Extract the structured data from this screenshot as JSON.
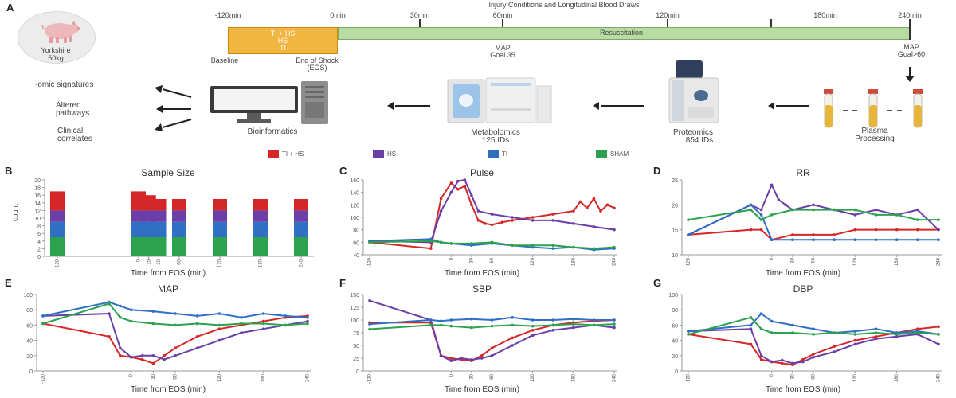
{
  "panelA": {
    "letter": "A",
    "title": "Injury Conditions and Longitudinal Blood Draws",
    "animal": {
      "name": "Yorkshire",
      "weight": "50kg"
    },
    "times": [
      "-120min",
      "0min",
      "30min",
      "60min",
      "120min",
      "180min",
      "240min"
    ],
    "shock_lines": [
      "TI + HS",
      "HS",
      "TI"
    ],
    "resuscitation": "Resuscitation",
    "baseline": "Baseline",
    "eos": [
      "End of Shock",
      "(EOS)"
    ],
    "map_goal_35": [
      "MAP",
      "Goal 35"
    ],
    "map_goal_60": [
      "MAP",
      "Goal>60"
    ],
    "outputs": [
      "-omic signatures",
      "Altered pathways",
      "Clinical correlates"
    ],
    "steps": {
      "bioinformatics": [
        "Bioinformatics"
      ],
      "metabolomics": [
        "Metabolomics",
        "125 IDs"
      ],
      "proteomics": [
        "Proteomics",
        "854 IDs"
      ],
      "plasma": [
        "Plasma",
        "Processing"
      ]
    }
  },
  "legend": [
    {
      "label": "TI + HS",
      "color": "#d62728"
    },
    {
      "label": "HS",
      "color": "#6a3fa8"
    },
    {
      "label": "TI",
      "color": "#2f6fc4"
    },
    {
      "label": "SHAM",
      "color": "#2ca24f"
    }
  ],
  "x_tick_labels": [
    "-120",
    "0",
    "30",
    "60",
    "120",
    "180",
    "240"
  ],
  "chart_data": [
    {
      "id": "B",
      "type": "bar",
      "title": "Sample Size",
      "xlabel": "Time from EOS (min)",
      "ylabel": "count",
      "ylim": [
        0,
        20
      ],
      "yticks": [
        0,
        2,
        4,
        6,
        8,
        10,
        12,
        14,
        16,
        18,
        20
      ],
      "categories": [
        "-120",
        "0",
        "15",
        "30",
        "60",
        "120",
        "180",
        "240"
      ],
      "x": [
        -120,
        0,
        15,
        30,
        60,
        120,
        180,
        240
      ],
      "series": [
        {
          "name": "SHAM",
          "values": [
            5,
            5,
            5,
            5,
            5,
            5,
            5,
            5
          ]
        },
        {
          "name": "TI",
          "values": [
            4,
            4,
            4,
            4,
            4,
            4,
            4,
            4
          ]
        },
        {
          "name": "HS",
          "values": [
            3,
            3,
            3,
            3,
            3,
            3,
            3,
            3
          ]
        },
        {
          "name": "TI + HS",
          "values": [
            5,
            5,
            4,
            3,
            3,
            3,
            3,
            3
          ]
        }
      ]
    },
    {
      "id": "C",
      "type": "line",
      "title": "Pulse",
      "xlabel": "Time from EOS (min)",
      "xlim": [
        -120,
        240
      ],
      "ylim": [
        40,
        160
      ],
      "yticks": [
        40,
        60,
        80,
        100,
        120,
        140,
        160
      ],
      "series": [
        {
          "name": "TI + HS",
          "x": [
            -120,
            -30,
            -15,
            0,
            10,
            20,
            30,
            40,
            50,
            60,
            75,
            90,
            120,
            150,
            180,
            190,
            200,
            210,
            220,
            230,
            240
          ],
          "y": [
            60,
            50,
            130,
            155,
            145,
            150,
            120,
            95,
            90,
            88,
            92,
            95,
            100,
            105,
            110,
            125,
            115,
            130,
            110,
            120,
            115
          ]
        },
        {
          "name": "HS",
          "x": [
            -120,
            -30,
            -15,
            0,
            10,
            20,
            30,
            40,
            60,
            90,
            120,
            150,
            180,
            210,
            240
          ],
          "y": [
            62,
            60,
            110,
            140,
            158,
            160,
            135,
            110,
            105,
            100,
            95,
            95,
            90,
            85,
            80
          ]
        },
        {
          "name": "TI",
          "x": [
            -120,
            -30,
            -15,
            0,
            30,
            60,
            90,
            120,
            150,
            180,
            210,
            240
          ],
          "y": [
            62,
            65,
            60,
            58,
            55,
            58,
            55,
            52,
            50,
            52,
            48,
            50
          ]
        },
        {
          "name": "SHAM",
          "x": [
            -120,
            -30,
            -15,
            0,
            30,
            60,
            90,
            120,
            150,
            180,
            210,
            240
          ],
          "y": [
            60,
            62,
            60,
            58,
            58,
            60,
            55,
            55,
            55,
            52,
            50,
            52
          ]
        }
      ]
    },
    {
      "id": "D",
      "type": "line",
      "title": "RR",
      "xlabel": "Time from EOS (min)",
      "xlim": [
        -120,
        240
      ],
      "ylim": [
        10,
        25
      ],
      "yticks": [
        10,
        15,
        20,
        25
      ],
      "series": [
        {
          "name": "TI + HS",
          "x": [
            -120,
            -30,
            -15,
            0,
            30,
            60,
            90,
            120,
            150,
            180,
            210,
            240
          ],
          "y": [
            14,
            15,
            15,
            13,
            14,
            14,
            14,
            15,
            15,
            15,
            15,
            15
          ]
        },
        {
          "name": "HS",
          "x": [
            -120,
            -30,
            -15,
            0,
            10,
            20,
            30,
            60,
            90,
            120,
            150,
            180,
            210,
            240
          ],
          "y": [
            14,
            20,
            19,
            24,
            21,
            20,
            19,
            20,
            19,
            18,
            19,
            18,
            19,
            15
          ]
        },
        {
          "name": "TI",
          "x": [
            -120,
            -30,
            -15,
            0,
            30,
            60,
            90,
            120,
            150,
            180,
            210,
            240
          ],
          "y": [
            14,
            20,
            18,
            13,
            13,
            13,
            13,
            13,
            13,
            13,
            13,
            13
          ]
        },
        {
          "name": "SHAM",
          "x": [
            -120,
            -30,
            -15,
            0,
            30,
            60,
            90,
            120,
            150,
            180,
            210,
            240
          ],
          "y": [
            17,
            19,
            17,
            18,
            19,
            19,
            19,
            19,
            18,
            18,
            17,
            17
          ]
        }
      ]
    },
    {
      "id": "E",
      "type": "line",
      "title": "MAP",
      "xlabel": "Time from EOS (min)",
      "xlim": [
        -120,
        240
      ],
      "ylim": [
        0,
        100
      ],
      "yticks": [
        0,
        20,
        40,
        60,
        80,
        100
      ],
      "series": [
        {
          "name": "TI + HS",
          "x": [
            -120,
            -30,
            -15,
            0,
            15,
            30,
            45,
            60,
            90,
            120,
            150,
            180,
            210,
            240
          ],
          "y": [
            62,
            45,
            20,
            18,
            15,
            10,
            20,
            30,
            45,
            55,
            60,
            65,
            70,
            72
          ]
        },
        {
          "name": "HS",
          "x": [
            -120,
            -30,
            -15,
            0,
            15,
            30,
            45,
            60,
            90,
            120,
            150,
            180,
            210,
            240
          ],
          "y": [
            72,
            75,
            30,
            18,
            20,
            20,
            15,
            20,
            30,
            40,
            50,
            55,
            60,
            65
          ]
        },
        {
          "name": "TI",
          "x": [
            -120,
            -30,
            -15,
            0,
            30,
            60,
            90,
            120,
            150,
            180,
            210,
            240
          ],
          "y": [
            72,
            90,
            85,
            80,
            78,
            75,
            72,
            75,
            70,
            75,
            72,
            70
          ]
        },
        {
          "name": "SHAM",
          "x": [
            -120,
            -30,
            -15,
            0,
            30,
            60,
            90,
            120,
            150,
            180,
            210,
            240
          ],
          "y": [
            62,
            88,
            70,
            65,
            62,
            60,
            62,
            60,
            62,
            62,
            60,
            62
          ]
        }
      ]
    },
    {
      "id": "F",
      "type": "line",
      "title": "SBP",
      "xlabel": "Time from EOS (min)",
      "xlim": [
        -120,
        240
      ],
      "ylim": [
        0,
        150
      ],
      "yticks": [
        0,
        25,
        50,
        75,
        100,
        125,
        150
      ],
      "series": [
        {
          "name": "TI + HS",
          "x": [
            -120,
            -30,
            -15,
            0,
            15,
            30,
            45,
            60,
            90,
            120,
            150,
            180,
            210,
            240
          ],
          "y": [
            95,
            95,
            30,
            25,
            22,
            20,
            30,
            45,
            65,
            80,
            90,
            95,
            98,
            100
          ]
        },
        {
          "name": "HS",
          "x": [
            -120,
            -30,
            -15,
            0,
            15,
            30,
            45,
            60,
            90,
            120,
            150,
            180,
            210,
            240
          ],
          "y": [
            138,
            100,
            30,
            20,
            25,
            22,
            25,
            30,
            50,
            70,
            80,
            85,
            90,
            85
          ]
        },
        {
          "name": "TI",
          "x": [
            -120,
            -30,
            -15,
            0,
            30,
            60,
            90,
            120,
            150,
            180,
            210,
            240
          ],
          "y": [
            92,
            100,
            98,
            100,
            102,
            100,
            105,
            100,
            100,
            102,
            100,
            100
          ]
        },
        {
          "name": "SHAM",
          "x": [
            -120,
            -30,
            -15,
            0,
            30,
            60,
            90,
            120,
            150,
            180,
            210,
            240
          ],
          "y": [
            82,
            90,
            90,
            88,
            85,
            88,
            90,
            88,
            90,
            92,
            90,
            92
          ]
        }
      ]
    },
    {
      "id": "G",
      "type": "line",
      "title": "DBP",
      "xlabel": "Time from EOS (min)",
      "xlim": [
        -120,
        240
      ],
      "ylim": [
        0,
        100
      ],
      "yticks": [
        0,
        20,
        40,
        60,
        80,
        100
      ],
      "series": [
        {
          "name": "TI + HS",
          "x": [
            -120,
            -30,
            -15,
            0,
            15,
            30,
            45,
            60,
            90,
            120,
            150,
            180,
            210,
            240
          ],
          "y": [
            48,
            35,
            15,
            12,
            10,
            8,
            15,
            22,
            32,
            40,
            45,
            50,
            55,
            58
          ]
        },
        {
          "name": "HS",
          "x": [
            -120,
            -30,
            -15,
            0,
            15,
            30,
            45,
            60,
            90,
            120,
            150,
            180,
            210,
            240
          ],
          "y": [
            52,
            55,
            20,
            12,
            14,
            10,
            12,
            18,
            25,
            35,
            42,
            45,
            48,
            35
          ]
        },
        {
          "name": "TI",
          "x": [
            -120,
            -30,
            -15,
            0,
            30,
            60,
            90,
            120,
            150,
            180,
            210,
            240
          ],
          "y": [
            52,
            60,
            75,
            65,
            60,
            55,
            50,
            52,
            55,
            50,
            52,
            48
          ]
        },
        {
          "name": "SHAM",
          "x": [
            -120,
            -30,
            -15,
            0,
            30,
            60,
            90,
            120,
            150,
            180,
            210,
            240
          ],
          "y": [
            48,
            70,
            55,
            50,
            50,
            48,
            50,
            48,
            50,
            48,
            50,
            48
          ]
        }
      ]
    }
  ]
}
